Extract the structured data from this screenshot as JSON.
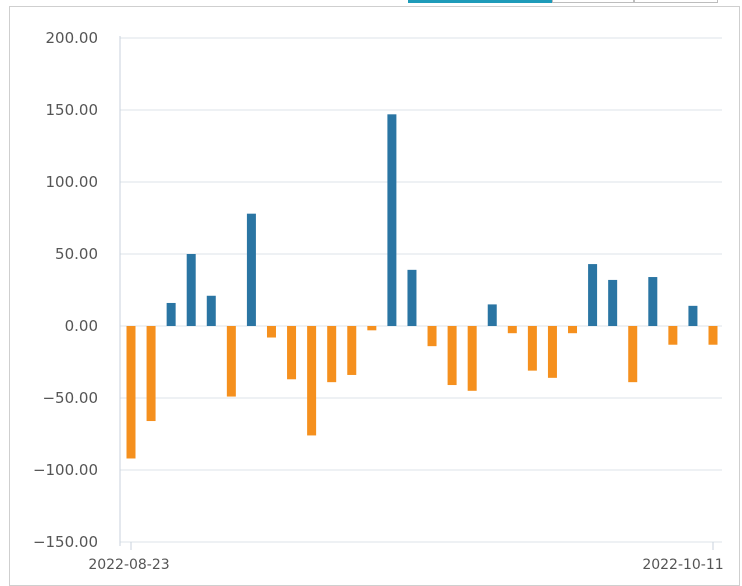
{
  "chart_data": {
    "type": "bar",
    "x_start_label": "2022-08-23",
    "x_end_label": "2022-10-11",
    "ylim": [
      -150,
      200
    ],
    "yticks": [
      200,
      150,
      100,
      50,
      0,
      -50,
      -100,
      -150
    ],
    "ytick_labels": [
      "200.00",
      "150.00",
      "100.00",
      "50.00",
      "0.00",
      "−50.00",
      "−100.00",
      "−150.00"
    ],
    "grid": true,
    "positive_color": "#2a75a3",
    "negative_color": "#f5901e",
    "values": [
      -92,
      -66,
      16,
      50,
      21,
      -49,
      78,
      -8,
      -37,
      -76,
      -39,
      -34,
      -3,
      147,
      39,
      -14,
      -41,
      -45,
      15,
      -5,
      -31,
      -36,
      -5,
      43,
      32,
      -39,
      34,
      -13,
      14,
      -13
    ]
  }
}
